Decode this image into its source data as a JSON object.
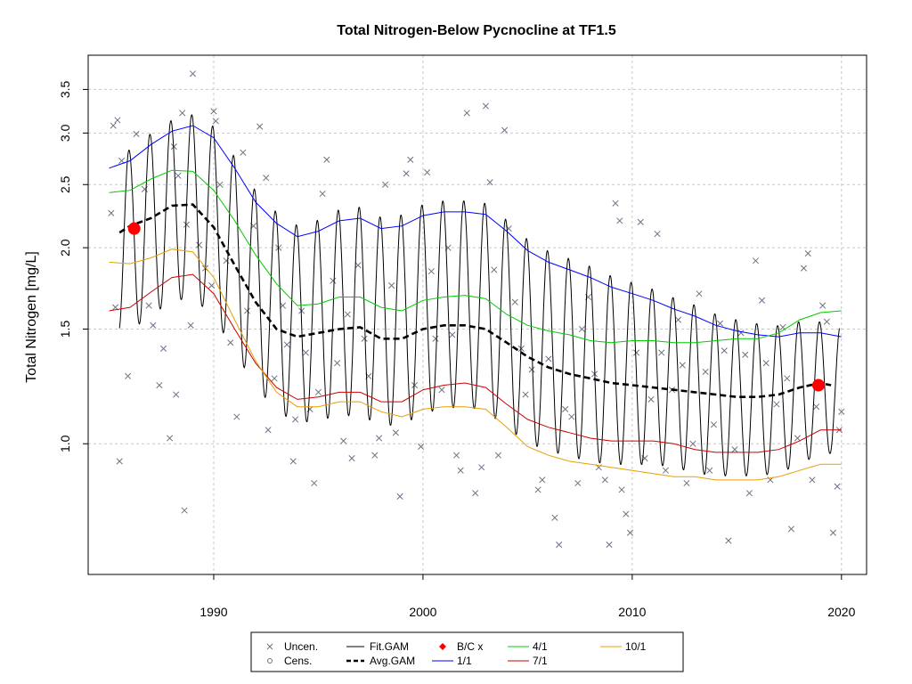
{
  "colors": {
    "fit": "#000000",
    "avg": "#000000",
    "s1": "#0000ff",
    "s4": "#00cc00",
    "s7": "#cc0000",
    "s10": "#e8a000",
    "bc": "#ff0000",
    "points": "#6a7384",
    "grid": "#c8c8c8"
  },
  "chart_data": {
    "type": "line",
    "title": "Total Nitrogen-Below Pycnocline at TF1.5",
    "xlabel": "",
    "ylabel": "Total Nitrogen [mg/L]",
    "y_scale": "log",
    "xlim": [
      1984.0,
      2021.2
    ],
    "ylim": [
      0.63,
      3.95
    ],
    "x_ticks": [
      1990,
      2000,
      2010,
      2020
    ],
    "x_tick_labels": [
      "1990",
      "2000",
      "2010",
      "2020"
    ],
    "y_ticks": [
      1.0,
      1.5,
      2.0,
      2.5,
      3.0,
      3.5
    ],
    "y_tick_labels": [
      "1.0",
      "1.5",
      "2.0",
      "2.5",
      "3.0",
      "3.5"
    ],
    "grid": true,
    "legend_position": "bottom",
    "legend": [
      {
        "label": "Uncen.",
        "kind": "x-marker"
      },
      {
        "label": "Cens.",
        "kind": "circle-marker"
      },
      {
        "label": "Fit.GAM",
        "kind": "solid-line"
      },
      {
        "label": "Avg.GAM",
        "kind": "dashed-line"
      },
      {
        "label": "B/C x",
        "kind": "diamond-marker"
      },
      {
        "label": "1/1",
        "kind": "line-blue"
      },
      {
        "label": "4/1",
        "kind": "line-green"
      },
      {
        "label": "7/1",
        "kind": "line-red"
      },
      {
        "label": "10/1",
        "kind": "line-orange"
      }
    ],
    "series": [
      {
        "name": "1/1",
        "x": [
          1985,
          1986,
          1987,
          1988,
          1989,
          1990,
          1991,
          1992,
          1993,
          1994,
          1995,
          1996,
          1997,
          1998,
          1999,
          2000,
          2001,
          2002,
          2003,
          2004,
          2005,
          2006,
          2007,
          2008,
          2009,
          2010,
          2011,
          2012,
          2013,
          2014,
          2015,
          2016,
          2017,
          2018,
          2019,
          2020
        ],
        "values": [
          2.65,
          2.72,
          2.88,
          3.02,
          3.08,
          2.95,
          2.65,
          2.35,
          2.18,
          2.08,
          2.12,
          2.2,
          2.22,
          2.14,
          2.16,
          2.24,
          2.27,
          2.27,
          2.25,
          2.12,
          1.98,
          1.9,
          1.85,
          1.8,
          1.74,
          1.7,
          1.66,
          1.61,
          1.57,
          1.52,
          1.49,
          1.47,
          1.46,
          1.48,
          1.48,
          1.46
        ]
      },
      {
        "name": "4/1",
        "x": [
          1985,
          1986,
          1987,
          1988,
          1989,
          1990,
          1991,
          1992,
          1993,
          1994,
          1995,
          1996,
          1997,
          1998,
          1999,
          2000,
          2001,
          2002,
          2003,
          2004,
          2005,
          2006,
          2007,
          2008,
          2009,
          2010,
          2011,
          2012,
          2013,
          2014,
          2015,
          2016,
          2017,
          2018,
          2019,
          2020
        ],
        "values": [
          2.43,
          2.45,
          2.55,
          2.63,
          2.62,
          2.45,
          2.2,
          1.95,
          1.76,
          1.63,
          1.64,
          1.68,
          1.68,
          1.62,
          1.6,
          1.66,
          1.68,
          1.69,
          1.67,
          1.58,
          1.52,
          1.49,
          1.47,
          1.44,
          1.43,
          1.44,
          1.44,
          1.43,
          1.43,
          1.44,
          1.45,
          1.45,
          1.48,
          1.55,
          1.59,
          1.6
        ]
      },
      {
        "name": "7/1",
        "x": [
          1985,
          1986,
          1987,
          1988,
          1989,
          1990,
          1991,
          1992,
          1993,
          1994,
          1995,
          1996,
          1997,
          1998,
          1999,
          2000,
          2001,
          2002,
          2003,
          2004,
          2005,
          2006,
          2007,
          2008,
          2009,
          2010,
          2011,
          2012,
          2013,
          2014,
          2015,
          2016,
          2017,
          2018,
          2019,
          2020
        ],
        "values": [
          1.6,
          1.62,
          1.71,
          1.8,
          1.82,
          1.7,
          1.5,
          1.33,
          1.22,
          1.17,
          1.18,
          1.2,
          1.2,
          1.16,
          1.16,
          1.21,
          1.23,
          1.24,
          1.22,
          1.15,
          1.09,
          1.06,
          1.04,
          1.02,
          1.01,
          1.01,
          1.01,
          1.0,
          0.98,
          0.97,
          0.97,
          0.97,
          0.98,
          1.01,
          1.05,
          1.05
        ]
      },
      {
        "name": "10/1",
        "x": [
          1985,
          1986,
          1987,
          1988,
          1989,
          1990,
          1991,
          1992,
          1993,
          1994,
          1995,
          1996,
          1997,
          1998,
          1999,
          2000,
          2001,
          2002,
          2003,
          2004,
          2005,
          2006,
          2007,
          2008,
          2009,
          2010,
          2011,
          2012,
          2013,
          2014,
          2015,
          2016,
          2017,
          2018,
          2019,
          2020
        ],
        "values": [
          1.9,
          1.89,
          1.93,
          1.99,
          1.97,
          1.8,
          1.55,
          1.34,
          1.2,
          1.14,
          1.14,
          1.16,
          1.16,
          1.12,
          1.1,
          1.13,
          1.14,
          1.14,
          1.13,
          1.06,
          0.99,
          0.96,
          0.94,
          0.93,
          0.92,
          0.91,
          0.9,
          0.89,
          0.89,
          0.88,
          0.88,
          0.88,
          0.89,
          0.91,
          0.93,
          0.93
        ]
      },
      {
        "name": "Avg.GAM",
        "x": [
          1985.5,
          1986,
          1987,
          1988,
          1989,
          1990,
          1991,
          1992,
          1993,
          1994,
          1995,
          1996,
          1997,
          1998,
          1999,
          2000,
          2001,
          2002,
          2003,
          2004,
          2005,
          2006,
          2007,
          2008,
          2009,
          2010,
          2011,
          2012,
          2013,
          2014,
          2015,
          2016,
          2017,
          2018,
          2019,
          2019.5
        ],
        "values": [
          2.11,
          2.16,
          2.22,
          2.32,
          2.33,
          2.15,
          1.88,
          1.65,
          1.5,
          1.46,
          1.48,
          1.5,
          1.51,
          1.45,
          1.45,
          1.5,
          1.52,
          1.52,
          1.5,
          1.43,
          1.36,
          1.31,
          1.28,
          1.26,
          1.24,
          1.23,
          1.22,
          1.21,
          1.2,
          1.19,
          1.18,
          1.18,
          1.19,
          1.22,
          1.24,
          1.23
        ]
      },
      {
        "name": "B/C x",
        "x": [
          1986.2,
          2018.9
        ],
        "values": [
          2.14,
          1.23
        ]
      }
    ],
    "scatter_points": [
      [
        1985.1,
        2.26
      ],
      [
        1985.2,
        3.08
      ],
      [
        1985.4,
        3.14
      ],
      [
        1985.6,
        2.72
      ],
      [
        1985.3,
        1.62
      ],
      [
        1985.5,
        0.94
      ],
      [
        1985.9,
        1.27
      ],
      [
        1986.3,
        2.99
      ],
      [
        1986.7,
        2.46
      ],
      [
        1986.9,
        1.63
      ],
      [
        1987.1,
        1.52
      ],
      [
        1987.4,
        1.23
      ],
      [
        1987.6,
        1.4
      ],
      [
        1987.9,
        1.02
      ],
      [
        1988.1,
        2.86
      ],
      [
        1988.3,
        2.58
      ],
      [
        1988.5,
        3.22
      ],
      [
        1988.7,
        2.17
      ],
      [
        1988.9,
        1.52
      ],
      [
        1989.0,
        3.7
      ],
      [
        1988.6,
        0.79
      ],
      [
        1988.2,
        1.19
      ],
      [
        1989.3,
        2.02
      ],
      [
        1989.6,
        1.86
      ],
      [
        1989.9,
        1.75
      ],
      [
        1990.0,
        3.24
      ],
      [
        1990.1,
        3.13
      ],
      [
        1990.3,
        2.5
      ],
      [
        1990.6,
        1.91
      ],
      [
        1990.8,
        1.43
      ],
      [
        1991.1,
        1.1
      ],
      [
        1991.4,
        2.8
      ],
      [
        1991.6,
        1.6
      ],
      [
        1991.9,
        2.16
      ],
      [
        1992.2,
        3.07
      ],
      [
        1992.5,
        2.56
      ],
      [
        1992.6,
        1.05
      ],
      [
        1992.9,
        1.26
      ],
      [
        1993.1,
        2.0
      ],
      [
        1993.3,
        1.63
      ],
      [
        1993.5,
        1.42
      ],
      [
        1993.8,
        0.94
      ],
      [
        1993.9,
        1.09
      ],
      [
        1994.2,
        1.6
      ],
      [
        1994.4,
        1.38
      ],
      [
        1994.6,
        1.13
      ],
      [
        1994.8,
        0.87
      ],
      [
        1995.0,
        1.2
      ],
      [
        1995.2,
        2.42
      ],
      [
        1995.4,
        2.73
      ],
      [
        1995.7,
        1.78
      ],
      [
        1995.9,
        1.33
      ],
      [
        1996.2,
        1.01
      ],
      [
        1996.4,
        1.58
      ],
      [
        1996.6,
        0.95
      ],
      [
        1996.9,
        1.88
      ],
      [
        1997.2,
        1.45
      ],
      [
        1997.4,
        1.27
      ],
      [
        1997.7,
        0.96
      ],
      [
        1997.9,
        1.02
      ],
      [
        1998.2,
        2.5
      ],
      [
        1998.5,
        1.75
      ],
      [
        1998.7,
        1.04
      ],
      [
        1998.9,
        0.83
      ],
      [
        1999.2,
        2.6
      ],
      [
        1999.4,
        2.73
      ],
      [
        1999.6,
        1.23
      ],
      [
        1999.9,
        0.99
      ],
      [
        2000.2,
        2.61
      ],
      [
        2000.4,
        1.84
      ],
      [
        2000.6,
        1.45
      ],
      [
        2000.9,
        1.21
      ],
      [
        2001.2,
        2.0
      ],
      [
        2001.4,
        1.47
      ],
      [
        2001.6,
        0.96
      ],
      [
        2001.8,
        0.91
      ],
      [
        2002.1,
        3.22
      ],
      [
        2002.5,
        0.84
      ],
      [
        2002.8,
        0.92
      ],
      [
        2003.0,
        3.3
      ],
      [
        2003.2,
        2.52
      ],
      [
        2003.4,
        1.85
      ],
      [
        2003.6,
        0.96
      ],
      [
        2003.9,
        3.03
      ],
      [
        2004.1,
        2.14
      ],
      [
        2004.4,
        1.65
      ],
      [
        2004.7,
        1.4
      ],
      [
        2004.9,
        1.19
      ],
      [
        2005.2,
        1.3
      ],
      [
        2005.5,
        0.85
      ],
      [
        2005.7,
        0.88
      ],
      [
        2006.0,
        1.35
      ],
      [
        2006.3,
        0.77
      ],
      [
        2006.5,
        0.7
      ],
      [
        2006.8,
        1.13
      ],
      [
        2007.1,
        1.1
      ],
      [
        2007.4,
        0.87
      ],
      [
        2007.6,
        1.5
      ],
      [
        2007.9,
        1.68
      ],
      [
        2008.2,
        1.28
      ],
      [
        2008.4,
        0.92
      ],
      [
        2008.7,
        0.88
      ],
      [
        2008.9,
        0.7
      ],
      [
        2009.2,
        2.34
      ],
      [
        2009.4,
        2.2
      ],
      [
        2009.5,
        0.85
      ],
      [
        2009.7,
        0.78
      ],
      [
        2009.9,
        0.73
      ],
      [
        2010.2,
        1.38
      ],
      [
        2010.4,
        2.19
      ],
      [
        2010.6,
        0.95
      ],
      [
        2010.9,
        1.17
      ],
      [
        2011.2,
        2.1
      ],
      [
        2011.4,
        1.38
      ],
      [
        2011.6,
        0.91
      ],
      [
        2011.9,
        1.21
      ],
      [
        2012.2,
        1.55
      ],
      [
        2012.4,
        1.32
      ],
      [
        2012.6,
        0.87
      ],
      [
        2012.9,
        1.0
      ],
      [
        2013.2,
        1.7
      ],
      [
        2013.5,
        1.29
      ],
      [
        2013.7,
        0.91
      ],
      [
        2013.9,
        1.07
      ],
      [
        2014.2,
        1.53
      ],
      [
        2014.4,
        1.39
      ],
      [
        2014.6,
        0.71
      ],
      [
        2014.9,
        0.98
      ],
      [
        2015.2,
        1.48
      ],
      [
        2015.4,
        1.37
      ],
      [
        2015.6,
        0.84
      ],
      [
        2015.9,
        1.91
      ],
      [
        2016.2,
        1.66
      ],
      [
        2016.4,
        1.33
      ],
      [
        2016.6,
        0.88
      ],
      [
        2016.9,
        1.15
      ],
      [
        2017.2,
        1.51
      ],
      [
        2017.4,
        1.26
      ],
      [
        2017.6,
        0.74
      ],
      [
        2017.9,
        1.02
      ],
      [
        2018.2,
        1.86
      ],
      [
        2018.4,
        1.96
      ],
      [
        2018.6,
        0.88
      ],
      [
        2018.8,
        1.14
      ],
      [
        2019.1,
        1.63
      ],
      [
        2019.3,
        1.54
      ],
      [
        2019.6,
        0.73
      ],
      [
        2019.8,
        0.86
      ],
      [
        2019.9,
        1.05
      ],
      [
        2020.0,
        1.12
      ]
    ]
  }
}
